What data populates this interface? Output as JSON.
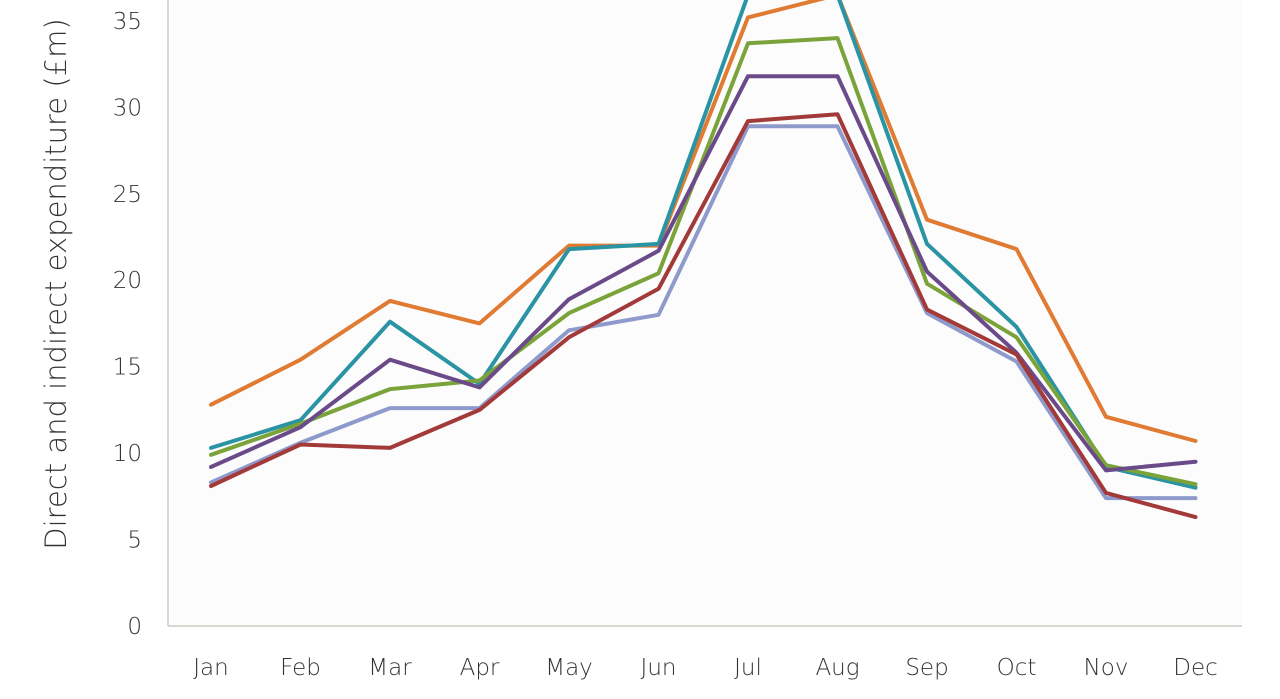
{
  "chart_data": {
    "type": "line",
    "title": "",
    "xlabel": "",
    "ylabel": "Direct and indirect expenditure (£m)",
    "categories": [
      "Jan",
      "Feb",
      "Mar",
      "Apr",
      "May",
      "Jun",
      "Jul",
      "Aug",
      "Sep",
      "Oct",
      "Nov",
      "Dec"
    ],
    "ylim": [
      0,
      35
    ],
    "yticks": [
      "0",
      "5",
      "10",
      "15",
      "20",
      "25",
      "30",
      "35"
    ],
    "grid": false,
    "legend": "none",
    "plot_background": "#fcfcfc",
    "axis_color": "#d8d8d0",
    "series": [
      {
        "color": "#e07b33",
        "values": [
          12.8,
          15.4,
          18.8,
          17.5,
          22.0,
          22.0,
          35.2,
          36.5,
          23.5,
          21.8,
          12.1,
          10.7
        ]
      },
      {
        "color": "#2a94a4",
        "values": [
          10.3,
          11.9,
          17.6,
          14.0,
          21.8,
          22.1,
          36.5,
          36.5,
          22.1,
          17.3,
          9.2,
          8.0
        ]
      },
      {
        "color": "#7aa33a",
        "values": [
          9.9,
          11.7,
          13.7,
          14.2,
          18.1,
          20.4,
          33.7,
          34.0,
          19.8,
          16.7,
          9.3,
          8.2
        ]
      },
      {
        "color": "#6b4a8a",
        "values": [
          9.2,
          11.5,
          15.4,
          13.8,
          18.9,
          21.7,
          31.8,
          31.8,
          20.5,
          15.8,
          9.0,
          9.5
        ]
      },
      {
        "color": "#8e9acb",
        "values": [
          8.3,
          10.6,
          12.6,
          12.6,
          17.1,
          18.0,
          28.9,
          28.9,
          18.1,
          15.3,
          7.4,
          7.4
        ]
      },
      {
        "color": "#a33a3a",
        "values": [
          8.1,
          10.5,
          10.3,
          12.5,
          16.7,
          19.5,
          29.2,
          29.6,
          18.3,
          15.7,
          7.7,
          6.3
        ]
      }
    ]
  }
}
